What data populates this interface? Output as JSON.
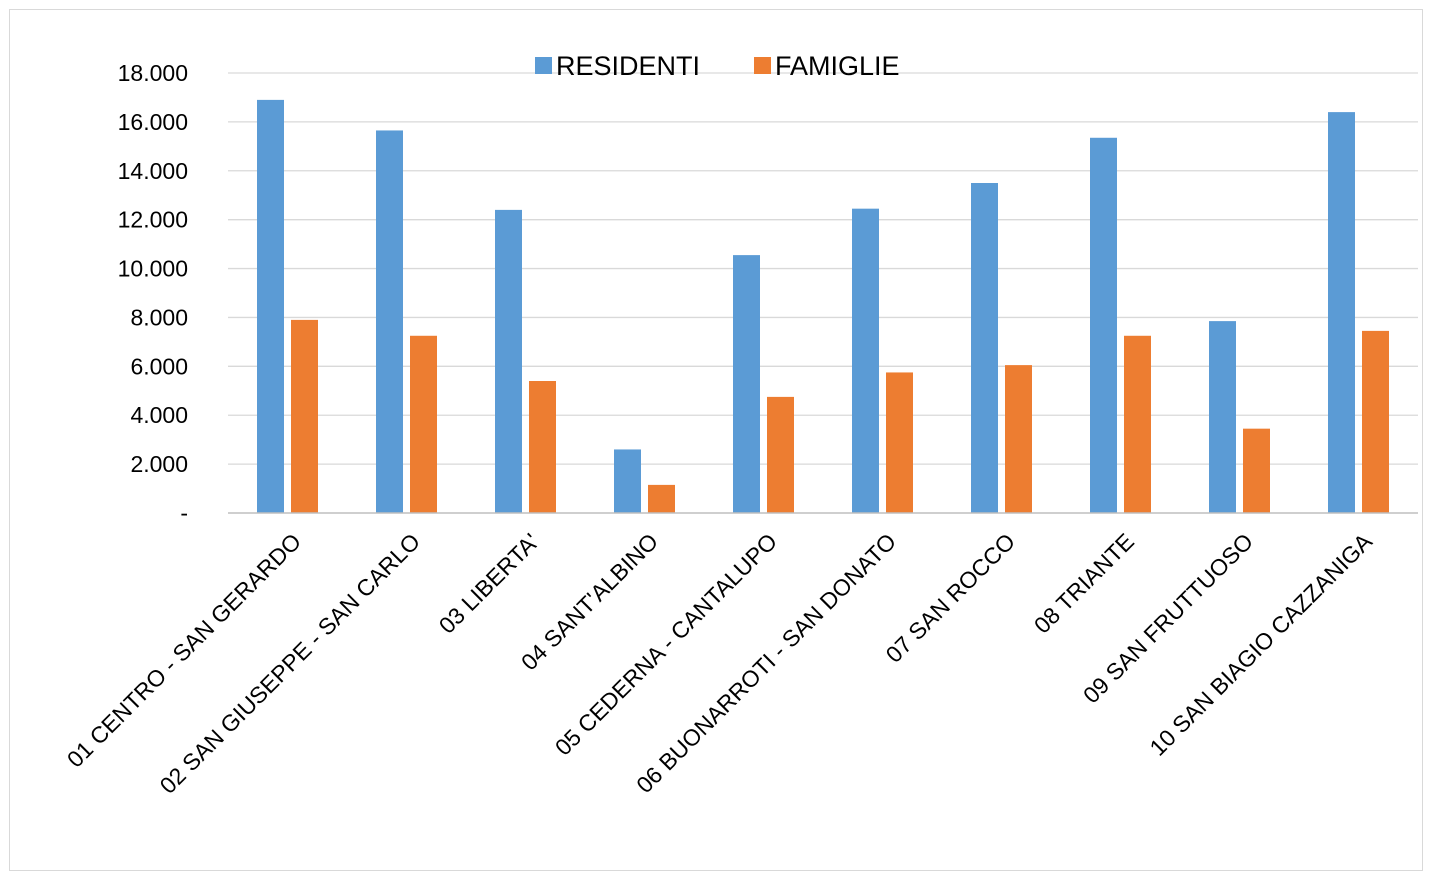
{
  "chart_data": {
    "type": "bar",
    "title": "",
    "xlabel": "",
    "ylabel": "",
    "categories": [
      "01 CENTRO - SAN GERARDO",
      "02 SAN GIUSEPPE - SAN CARLO",
      "03 LIBERTA'",
      "04 SANT'ALBINO",
      "05 CEDERNA - CANTALUPO",
      "06 BUONARROTI - SAN DONATO",
      "07 SAN ROCCO",
      "08 TRIANTE",
      "09 SAN FRUTTUOSO",
      "10 SAN BIAGIO CAZZANIGA"
    ],
    "series": [
      {
        "name": "RESIDENTI",
        "color": "#5b9bd5",
        "values": [
          16900,
          15650,
          12400,
          2600,
          10550,
          12450,
          13500,
          15350,
          7850,
          16400
        ]
      },
      {
        "name": "FAMIGLIE",
        "color": "#ed7d31",
        "values": [
          7900,
          7250,
          5400,
          1150,
          4750,
          5750,
          6050,
          7250,
          3450,
          7450
        ]
      }
    ],
    "ylim": [
      0,
      18000
    ],
    "yticks": [
      "-",
      "2.000",
      "4.000",
      "6.000",
      "8.000",
      "10.000",
      "12.000",
      "14.000",
      "16.000",
      "18.000"
    ],
    "grid": true,
    "legend_position": "top"
  }
}
